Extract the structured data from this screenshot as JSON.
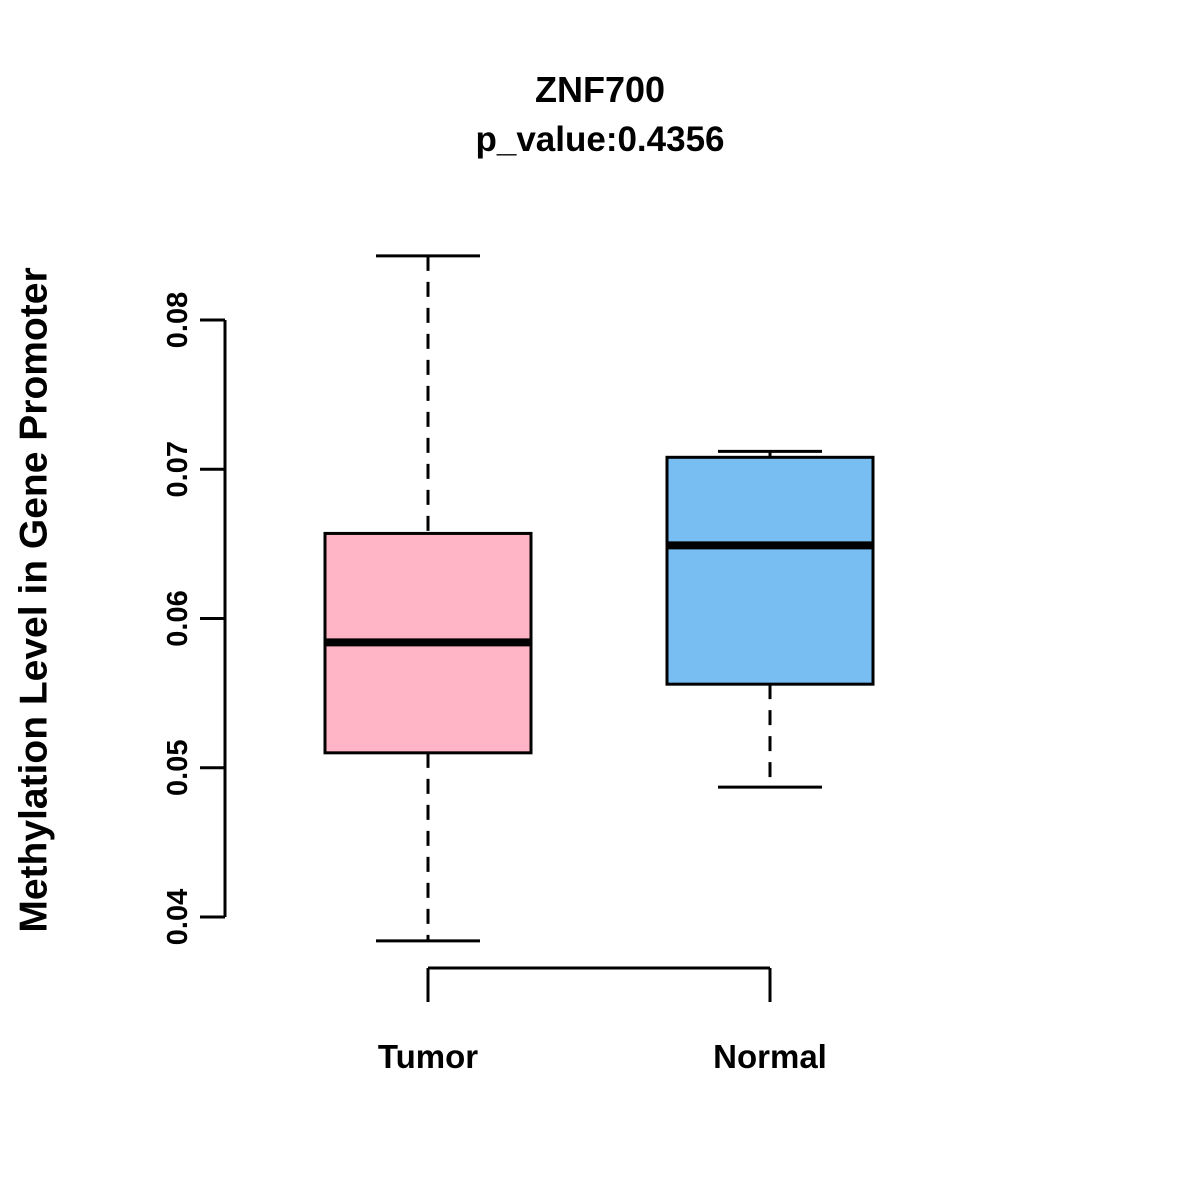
{
  "title": "ZNF700",
  "subtitle": "p_value:0.4356",
  "ylabel": "Methylation Level in Gene Promoter",
  "chart_data": {
    "type": "boxplot",
    "title": "ZNF700",
    "subtitle": "p_value:0.4356",
    "ylabel": "Methylation Level in Gene Promoter",
    "xlabel": "",
    "categories": [
      "Tumor",
      "Normal"
    ],
    "ylim": [
      0.04,
      0.08
    ],
    "yticks": [
      0.04,
      0.05,
      0.06,
      0.07,
      0.08
    ],
    "grid": false,
    "legend": "none",
    "series": [
      {
        "name": "Tumor",
        "color": "#FFB5C5",
        "lower_whisker": 0.0384,
        "q1": 0.051,
        "median": 0.0584,
        "q3": 0.0657,
        "upper_whisker": 0.0843
      },
      {
        "name": "Normal",
        "color": "#79BEF2",
        "lower_whisker": 0.0487,
        "q1": 0.0556,
        "median": 0.0649,
        "q3": 0.0708,
        "upper_whisker": 0.0712
      }
    ]
  }
}
